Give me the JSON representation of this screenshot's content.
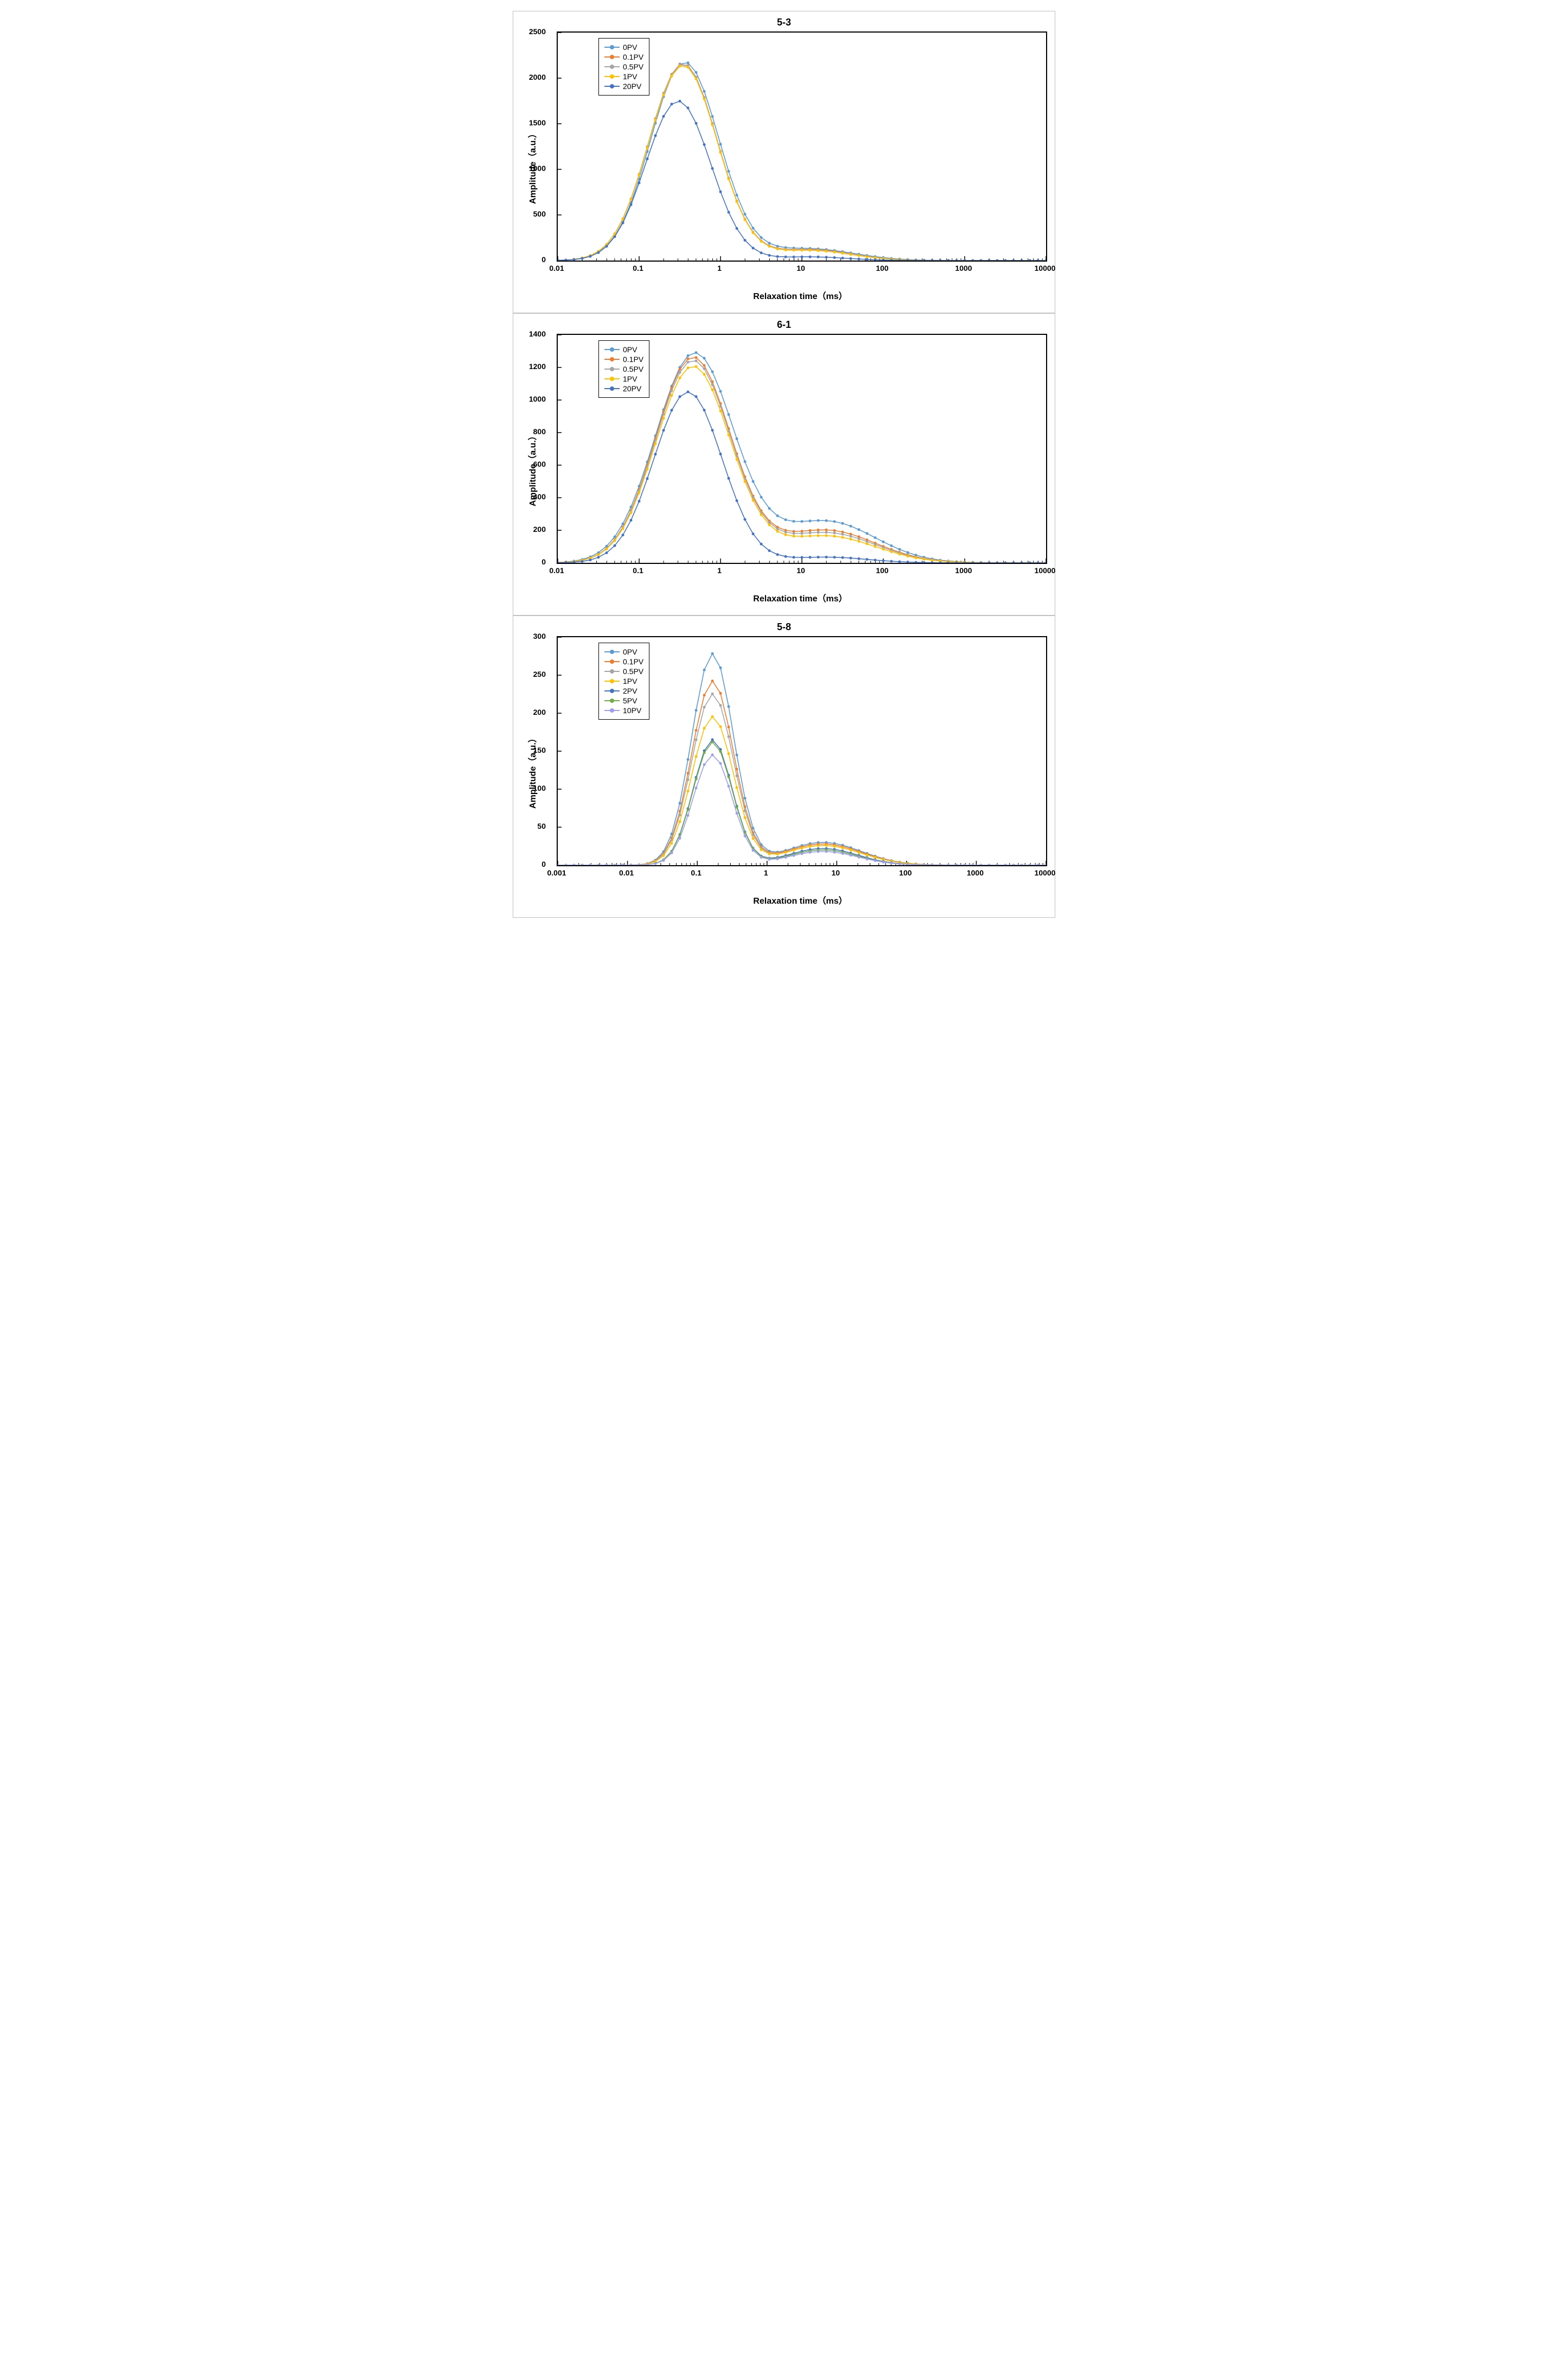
{
  "charts": [
    {
      "title": "5-3",
      "xlabel": "Relaxation time（ms）",
      "ylabel": "Amplitude（a.u.）",
      "xlog_min": -2,
      "xlog_max": 4,
      "xtick_labels": [
        "0.01",
        "0.1",
        "1",
        "10",
        "100",
        "1000",
        "10000"
      ],
      "ymin": 0,
      "ymax": 2500,
      "ytick_step": 500,
      "series": [
        {
          "label": "0PV",
          "color": "#5b9bd5",
          "peak_center": -0.44,
          "peak_amp": 2175,
          "sigma": 0.42,
          "bump_center": 1.08,
          "bump_amp": 130,
          "bump_sigma": 0.55
        },
        {
          "label": "0.1PV",
          "color": "#ed7d31",
          "peak_center": -0.46,
          "peak_amp": 2160,
          "sigma": 0.42,
          "bump_center": 1.1,
          "bump_amp": 120,
          "bump_sigma": 0.5
        },
        {
          "label": "0.5PV",
          "color": "#a5a5a5",
          "peak_center": -0.46,
          "peak_amp": 2155,
          "sigma": 0.42,
          "bump_center": 1.1,
          "bump_amp": 115,
          "bump_sigma": 0.5
        },
        {
          "label": "1PV",
          "color": "#ffc000",
          "peak_center": -0.46,
          "peak_amp": 2140,
          "sigma": 0.42,
          "bump_center": 1.1,
          "bump_amp": 110,
          "bump_sigma": 0.5
        },
        {
          "label": "20PV",
          "color": "#4472c4",
          "peak_center": -0.52,
          "peak_amp": 1750,
          "sigma": 0.4,
          "bump_center": 1.1,
          "bump_amp": 40,
          "bump_sigma": 0.45
        }
      ]
    },
    {
      "title": "6-1",
      "xlabel": "Relaxation time（ms）",
      "ylabel": "Amplitude（a.u.）",
      "xlog_min": -2,
      "xlog_max": 4,
      "xtick_labels": [
        "0.01",
        "0.1",
        "1",
        "10",
        "100",
        "1000",
        "10000"
      ],
      "ymin": 0,
      "ymax": 1400,
      "ytick_step": 200,
      "series": [
        {
          "label": "0PV",
          "color": "#5b9bd5",
          "peak_center": -0.32,
          "peak_amp": 1285,
          "sigma": 0.48,
          "bump_center": 1.3,
          "bump_amp": 255,
          "bump_sigma": 0.6
        },
        {
          "label": "0.1PV",
          "color": "#ed7d31",
          "peak_center": -0.34,
          "peak_amp": 1260,
          "sigma": 0.46,
          "bump_center": 1.3,
          "bump_amp": 200,
          "bump_sigma": 0.6
        },
        {
          "label": "0.5PV",
          "color": "#a5a5a5",
          "peak_center": -0.34,
          "peak_amp": 1240,
          "sigma": 0.46,
          "bump_center": 1.3,
          "bump_amp": 185,
          "bump_sigma": 0.6
        },
        {
          "label": "1PV",
          "color": "#ffc000",
          "peak_center": -0.34,
          "peak_amp": 1205,
          "sigma": 0.46,
          "bump_center": 1.3,
          "bump_amp": 165,
          "bump_sigma": 0.6
        },
        {
          "label": "20PV",
          "color": "#4472c4",
          "peak_center": -0.4,
          "peak_amp": 1050,
          "sigma": 0.42,
          "bump_center": 1.3,
          "bump_amp": 35,
          "bump_sigma": 0.5
        }
      ]
    },
    {
      "title": "5-8",
      "xlabel": "Relaxation time（ms）",
      "ylabel": "Amplitude（a.u.）",
      "xlog_min": -3,
      "xlog_max": 4,
      "xtick_labels": [
        "0.001",
        "0.01",
        "0.1",
        "1",
        "10",
        "100",
        "1000",
        "10000"
      ],
      "ymin": 0,
      "ymax": 300,
      "ytick_step": 50,
      "series": [
        {
          "label": "0PV",
          "color": "#5b9bd5",
          "peak_center": -0.78,
          "peak_amp": 278,
          "sigma": 0.3,
          "bump_center": 0.8,
          "bump_amp": 30,
          "bump_sigma": 0.55
        },
        {
          "label": "0.1PV",
          "color": "#ed7d31",
          "peak_center": -0.78,
          "peak_amp": 242,
          "sigma": 0.3,
          "bump_center": 0.8,
          "bump_amp": 28,
          "bump_sigma": 0.55
        },
        {
          "label": "0.5PV",
          "color": "#a5a5a5",
          "peak_center": -0.78,
          "peak_amp": 225,
          "sigma": 0.3,
          "bump_center": 0.8,
          "bump_amp": 26,
          "bump_sigma": 0.55
        },
        {
          "label": "1PV",
          "color": "#ffc000",
          "peak_center": -0.78,
          "peak_amp": 195,
          "sigma": 0.3,
          "bump_center": 0.8,
          "bump_amp": 26,
          "bump_sigma": 0.55
        },
        {
          "label": "2PV",
          "color": "#4472c4",
          "peak_center": -0.78,
          "peak_amp": 165,
          "sigma": 0.28,
          "bump_center": 0.8,
          "bump_amp": 22,
          "bump_sigma": 0.5
        },
        {
          "label": "5PV",
          "color": "#70ad47",
          "peak_center": -0.78,
          "peak_amp": 162,
          "sigma": 0.28,
          "bump_center": 0.8,
          "bump_amp": 20,
          "bump_sigma": 0.5
        },
        {
          "label": "10PV",
          "color": "#9e9eee",
          "peak_center": -0.78,
          "peak_amp": 145,
          "sigma": 0.28,
          "bump_center": 0.8,
          "bump_amp": 18,
          "bump_sigma": 0.5
        }
      ]
    }
  ],
  "styles": {
    "line_width": 1.6,
    "marker_radius": 2.5,
    "background_color": "#ffffff",
    "border_color": "#000000",
    "panel_border_color": "#c0c0c0",
    "tick_font_size": 14,
    "title_font_size": 18,
    "label_font_size": 16,
    "n_markers": 60
  }
}
